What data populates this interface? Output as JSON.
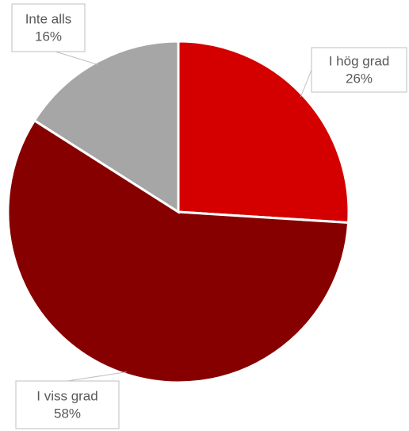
{
  "chart_data": {
    "type": "pie",
    "categories": [
      "I hög grad",
      "I viss grad",
      "Inte alls"
    ],
    "values": [
      26,
      58,
      16
    ],
    "value_labels": [
      "26%",
      "58%",
      "16%"
    ],
    "colors": [
      "#d40000",
      "#870000",
      "#a6a6a6"
    ]
  }
}
